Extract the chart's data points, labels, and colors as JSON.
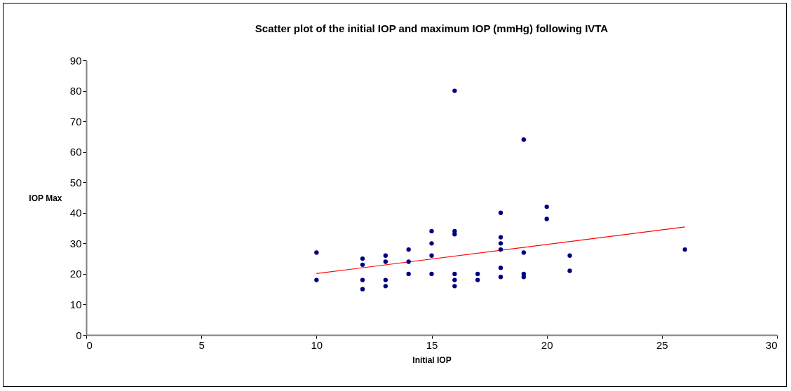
{
  "chart_data": {
    "type": "scatter",
    "title": "Scatter plot of the initial IOP and maximum IOP (mmHg) following IVTA",
    "xlabel": "Initial IOP",
    "ylabel": "IOP Max",
    "xlim": [
      0,
      30
    ],
    "xticks": [
      0,
      5,
      10,
      15,
      20,
      25,
      30
    ],
    "ylim": [
      0,
      90
    ],
    "yticks": [
      0,
      10,
      20,
      30,
      40,
      50,
      60,
      70,
      80,
      90
    ],
    "grid": false,
    "series": [
      {
        "marker": "circle",
        "color": "#000080",
        "x": [
          10,
          10,
          12,
          12,
          12,
          12,
          13,
          13,
          13,
          13,
          14,
          14,
          14,
          15,
          15,
          15,
          15,
          16,
          16,
          16,
          16,
          16,
          16,
          17,
          17,
          18,
          18,
          18,
          18,
          18,
          18,
          19,
          19,
          19,
          19,
          20,
          20,
          21,
          21,
          26
        ],
        "values": [
          27,
          18,
          25,
          23,
          18,
          15,
          26,
          24,
          18,
          16,
          28,
          24,
          20,
          34,
          30,
          26,
          20,
          80,
          34,
          33,
          20,
          18,
          16,
          20,
          18,
          40,
          32,
          30,
          28,
          22,
          19,
          64,
          27,
          20,
          19,
          42,
          38,
          26,
          21,
          28
        ]
      },
      {
        "type": "line",
        "color": "#ff0000",
        "x": [
          10,
          26
        ],
        "values": [
          20.1,
          35.4
        ],
        "line_style": "solid"
      }
    ]
  }
}
